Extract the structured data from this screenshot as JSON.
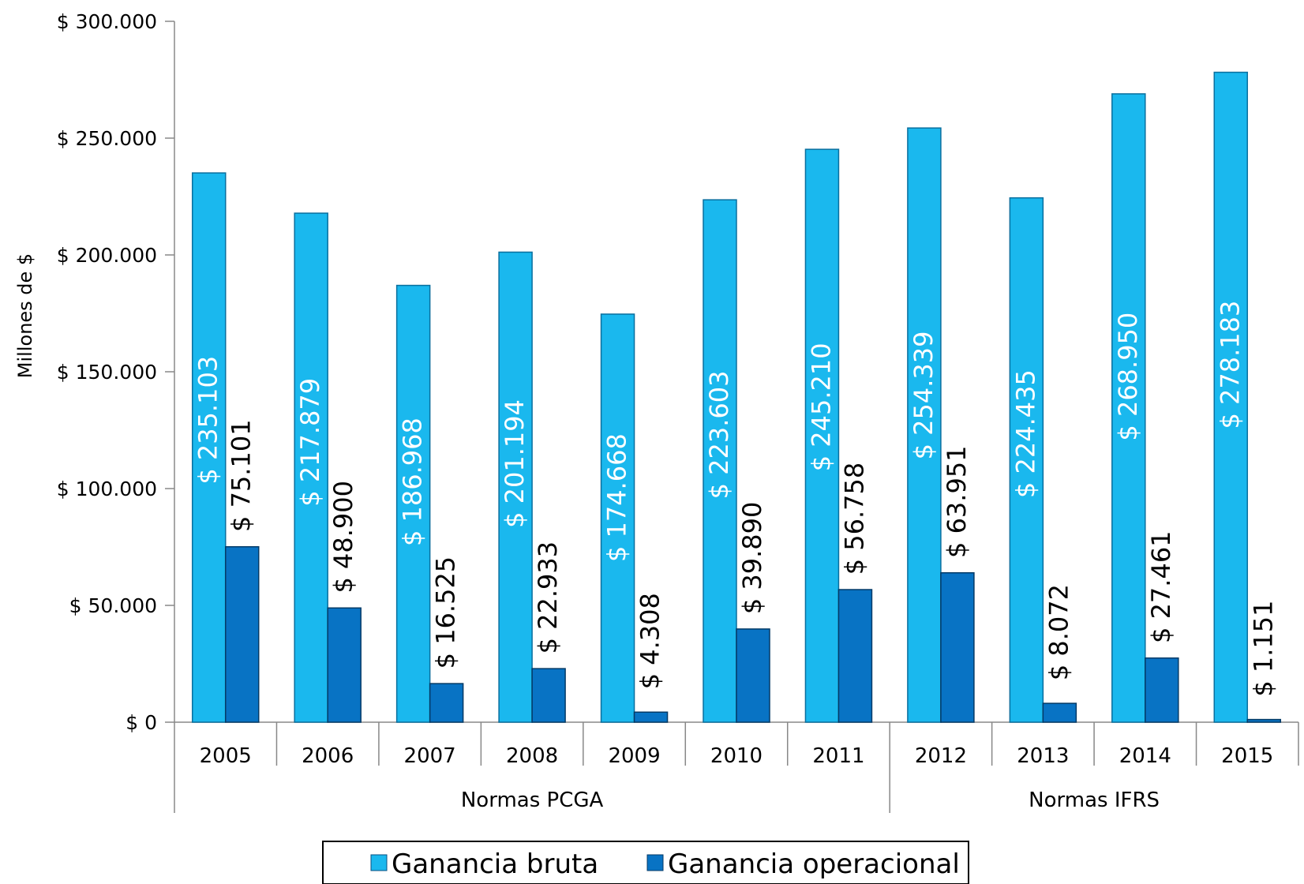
{
  "chart_data": {
    "type": "bar",
    "title": "",
    "ylabel": "Millones de $",
    "xlabel": "",
    "ylim": [
      0,
      300000
    ],
    "yticks": [
      "$ 0",
      "$ 50.000",
      "$ 100.000",
      "$ 150.000",
      "$ 200.000",
      "$ 250.000",
      "$ 300.000"
    ],
    "categories": [
      "2005",
      "2006",
      "2007",
      "2008",
      "2009",
      "2010",
      "2011",
      "2012",
      "2013",
      "2014",
      "2015"
    ],
    "groups": [
      {
        "label": "Normas PCGA",
        "from": 0,
        "to": 6
      },
      {
        "label": "Normas IFRS",
        "from": 7,
        "to": 10
      }
    ],
    "series": [
      {
        "name": "Ganancia bruta",
        "color": "#1ab8ee",
        "label_color": "#ffffff",
        "values": [
          235103,
          217879,
          186968,
          201194,
          174668,
          223603,
          245210,
          254339,
          224435,
          268950,
          278183
        ],
        "labels": [
          "$ 235.103",
          "$ 217.879",
          "$ 186.968",
          "$ 201.194",
          "$ 174.668",
          "$ 223.603",
          "$ 245.210",
          "$ 254.339",
          "$ 224.435",
          "$ 268.950",
          "$ 278.183"
        ]
      },
      {
        "name": "Ganancia operacional",
        "color": "#0873c4",
        "label_color": "#000000",
        "values": [
          75101,
          48900,
          16525,
          22933,
          4308,
          39890,
          56758,
          63951,
          8072,
          27461,
          1151
        ],
        "labels": [
          "$ 75.101",
          "$ 48.900",
          "$ 16.525",
          "$ 22.933",
          "$ 4.308",
          "$ 39.890",
          "$ 56.758",
          "$ 63.951",
          "$ 8.072",
          "$ 27.461",
          "$ 1.151"
        ]
      }
    ],
    "legend_position": "bottom",
    "grid": false
  }
}
